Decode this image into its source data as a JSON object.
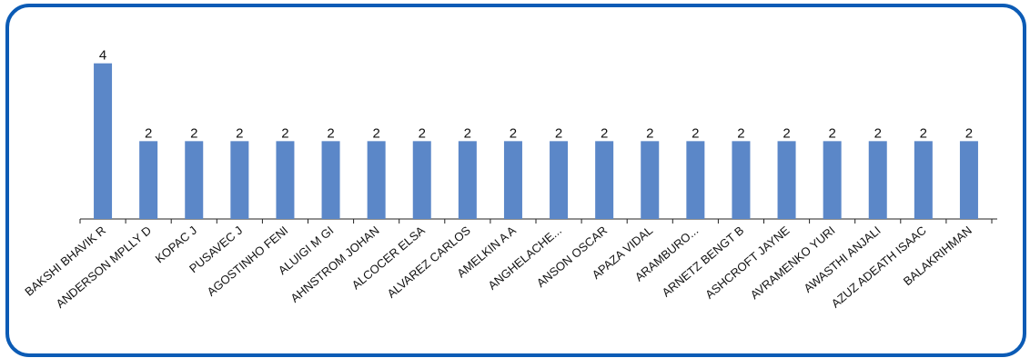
{
  "chart_data": {
    "type": "bar",
    "title": "",
    "xlabel": "",
    "ylabel": "",
    "ylim": [
      0,
      4.6
    ],
    "grid": false,
    "legend": "none",
    "bar_color": "#5b87c8",
    "frame_color": "#0b5bb5",
    "categories": [
      "BAKSHI BHAVIK R",
      "ANDERSON MPLLY D",
      "KOPAC J",
      "PUSAVEC J",
      "AGOSTINHO FENI",
      "ALUIGI M GI",
      "AHNSTROM JOHAN",
      "ALCOCER ELSA",
      "ALVAREZ CARLOS",
      "AMELKIN A A",
      "ANGHELACHE...",
      "ANSON OSCAR",
      "APAZA VIDAL",
      "ARAMBURO...",
      "ARNETZ BENGT B",
      "ASHCROFT JAYNE",
      "AVRAMENKO YURI",
      "AWASTHI ANJALI",
      "AZUZ ADEATH ISAAC",
      "BALAKRIHMAN"
    ],
    "values": [
      4,
      2,
      2,
      2,
      2,
      2,
      2,
      2,
      2,
      2,
      2,
      2,
      2,
      2,
      2,
      2,
      2,
      2,
      2,
      2
    ],
    "data_labels": [
      "4",
      "2",
      "2",
      "2",
      "2",
      "2",
      "2",
      "2",
      "2",
      "2",
      "2",
      "2",
      "2",
      "2",
      "2",
      "2",
      "2",
      "2",
      "2",
      "2"
    ]
  }
}
